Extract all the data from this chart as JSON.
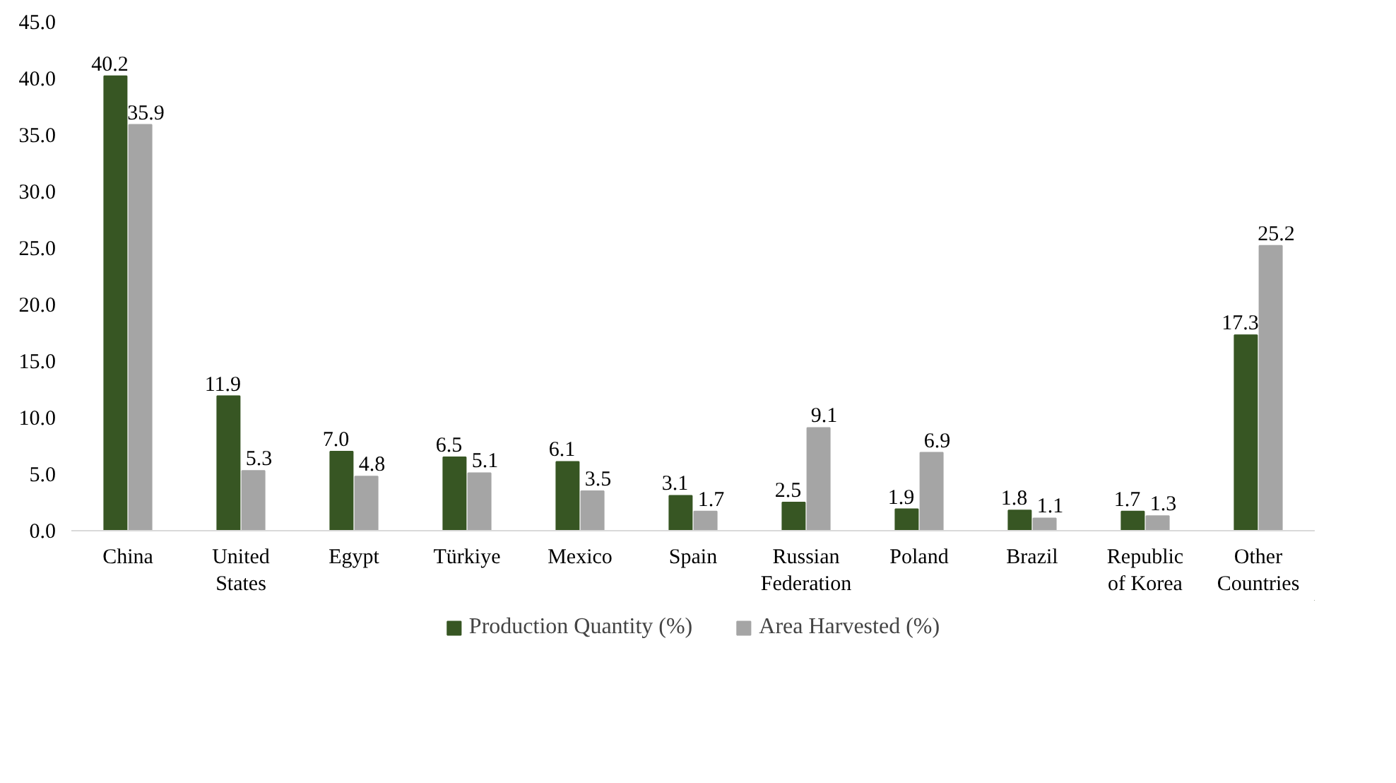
{
  "chart_data": {
    "type": "bar",
    "categories": [
      "China",
      "United States",
      "Egypt",
      "Türkiye",
      "Mexico",
      "Spain",
      "Russian Federation",
      "Poland",
      "Brazil",
      "Republic of Korea",
      "Other Countries"
    ],
    "series": [
      {
        "name": "Production Quantity (%)",
        "color": "#375623",
        "values": [
          40.2,
          11.9,
          7.0,
          6.5,
          6.1,
          3.1,
          2.5,
          1.9,
          1.8,
          1.7,
          17.3
        ],
        "value_labels": [
          "40.2",
          "11.9",
          "7.0",
          "6.5",
          "6.1",
          "3.1",
          "2.5",
          "1.9",
          "1.8",
          "1.7",
          "17.3"
        ]
      },
      {
        "name": "Area Harvested (%)",
        "color": "#a5a5a5",
        "values": [
          35.9,
          5.3,
          4.8,
          5.1,
          3.5,
          1.7,
          9.1,
          6.9,
          1.1,
          1.3,
          25.2
        ],
        "value_labels": [
          "35.9",
          "5.3",
          "4.8",
          "5.1",
          "3.5",
          "1.7",
          "9.1",
          "6.9",
          "1.1",
          "1.3",
          "25.2"
        ]
      }
    ],
    "ylim": [
      0,
      45
    ],
    "yticks": [
      {
        "value": 0,
        "label": "0.0"
      },
      {
        "value": 5,
        "label": "5.0"
      },
      {
        "value": 10,
        "label": "10.0"
      },
      {
        "value": 15,
        "label": "15.0"
      },
      {
        "value": 20,
        "label": "20.0"
      },
      {
        "value": 25,
        "label": "25.0"
      },
      {
        "value": 30,
        "label": "30.0"
      },
      {
        "value": 35,
        "label": "35.0"
      },
      {
        "value": 40,
        "label": "40.0"
      },
      {
        "value": 45,
        "label": "45.0"
      }
    ],
    "grid": false,
    "legend": "bottom"
  }
}
